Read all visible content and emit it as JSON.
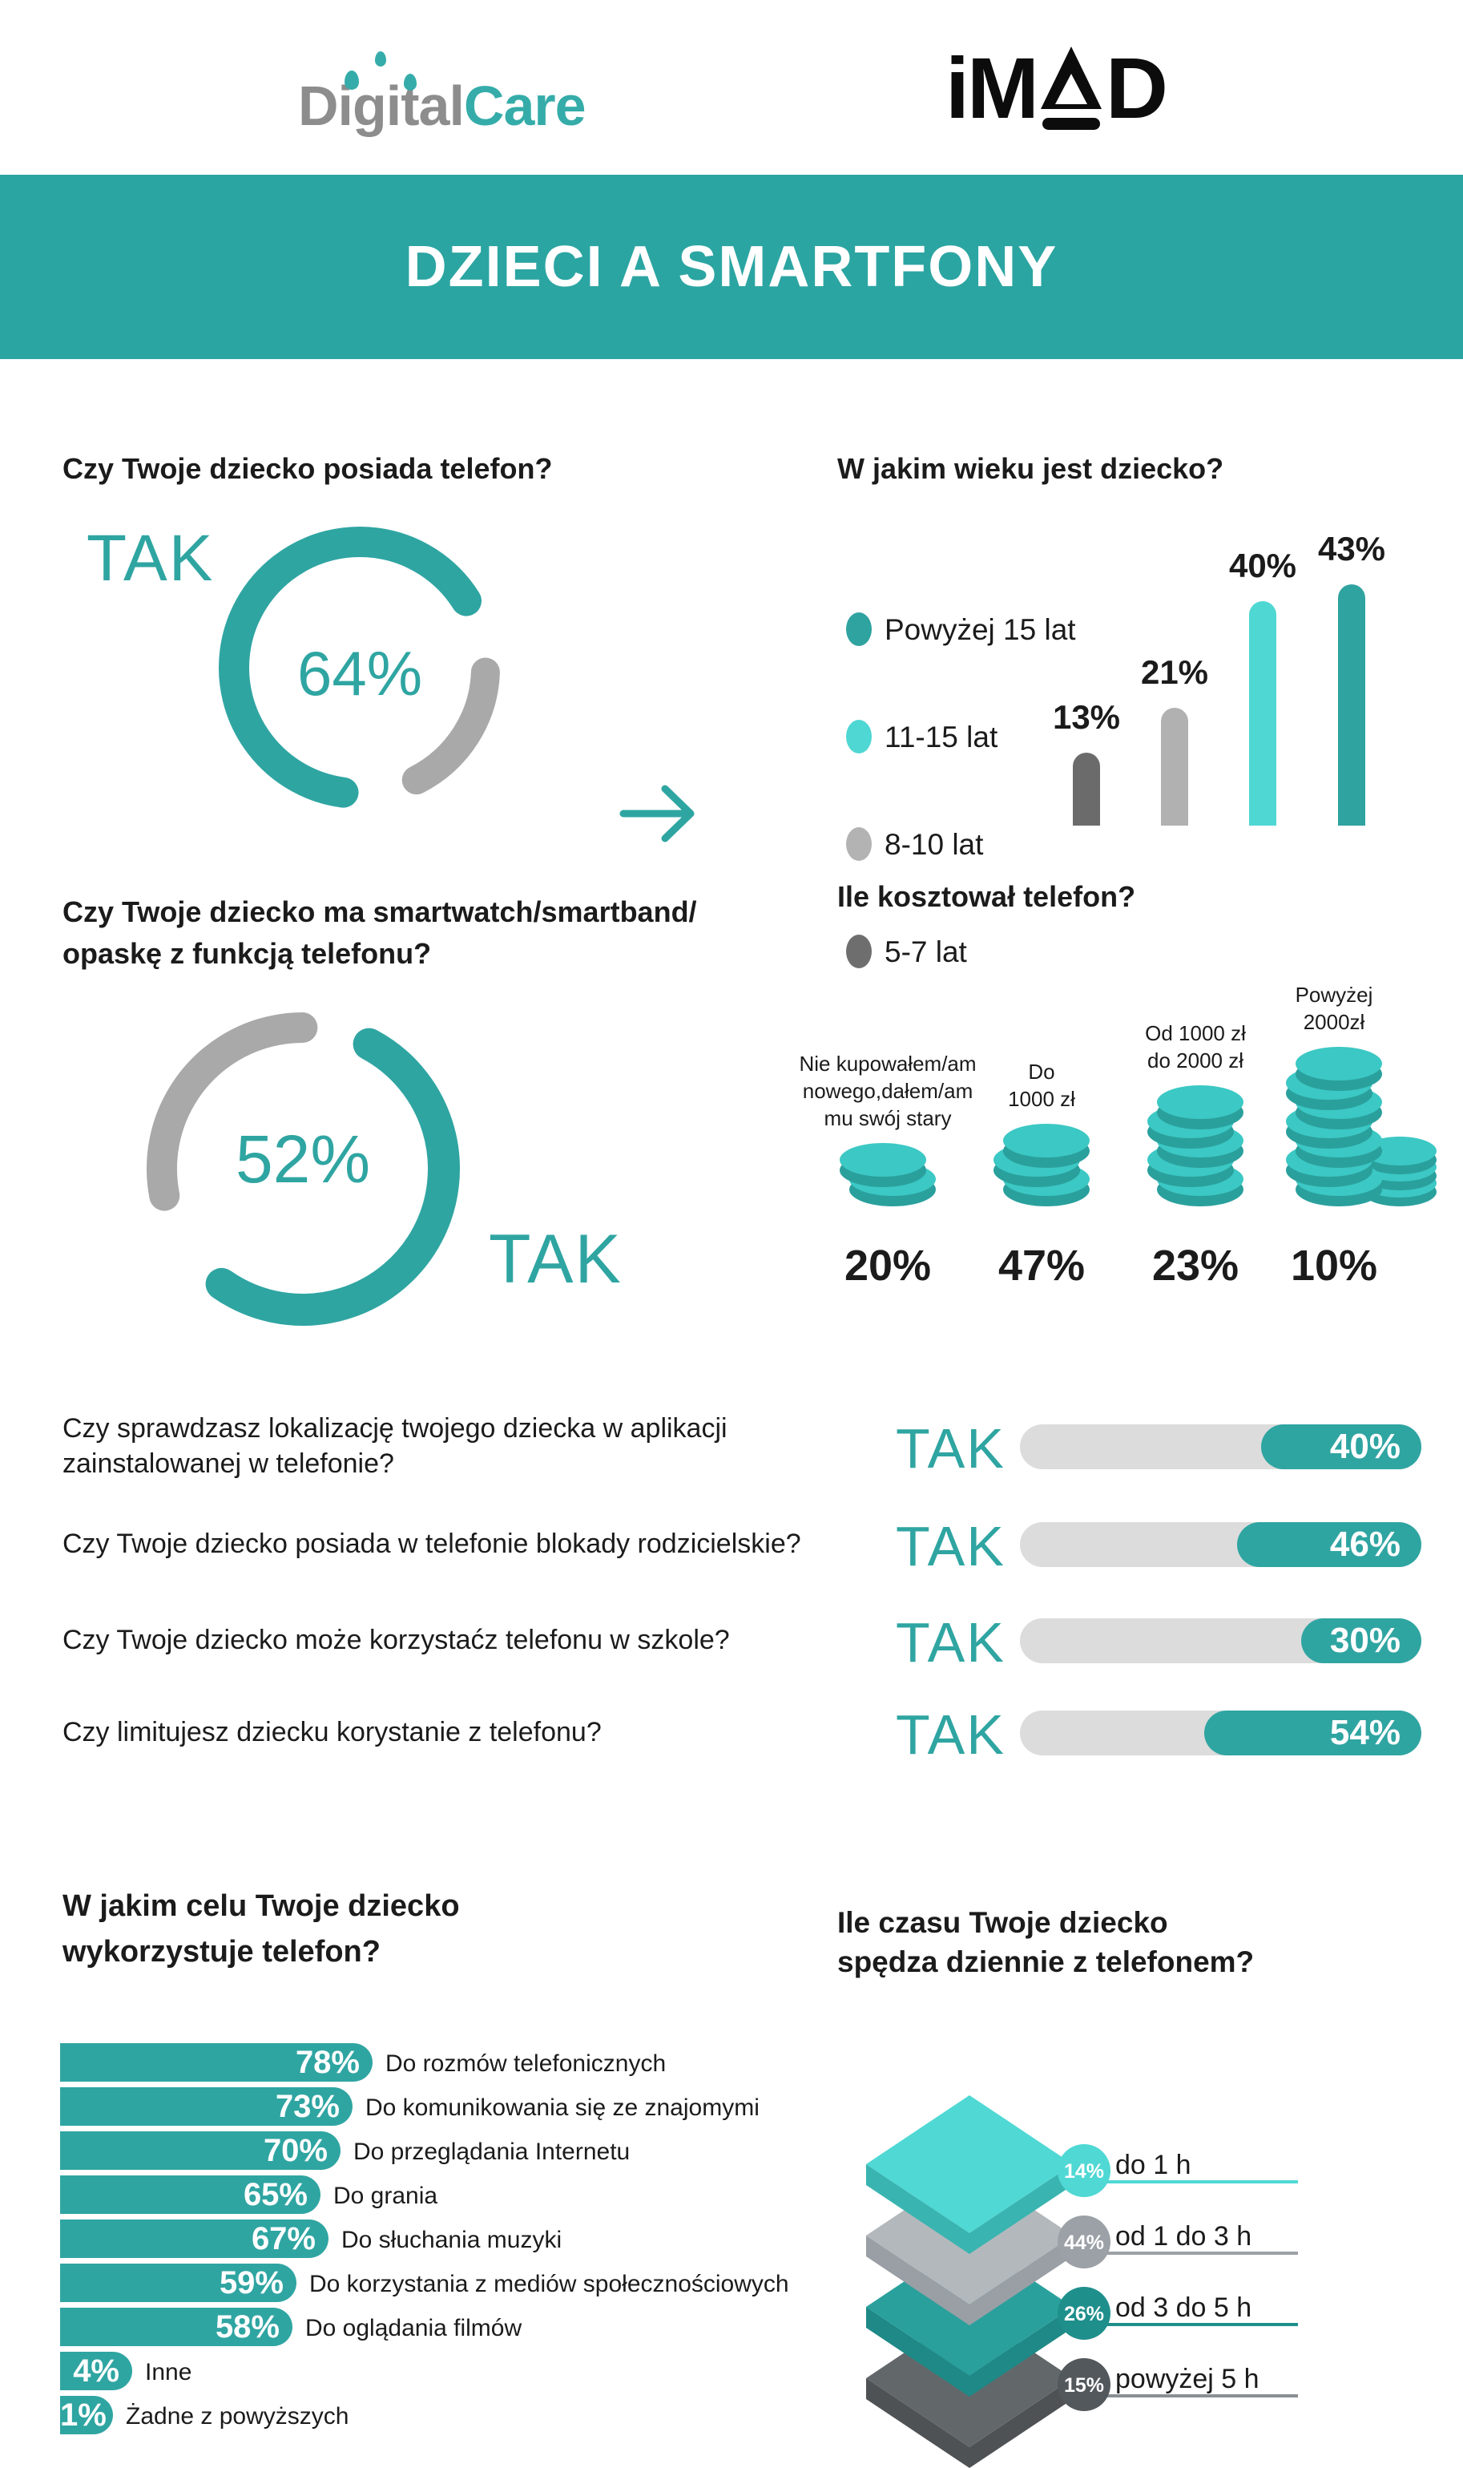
{
  "header": {
    "brand1": {
      "gray": "Digital",
      "teal": "Care"
    },
    "brand2": {
      "im": "iM",
      "d": "D"
    },
    "title": "DZIECI A SMARTFONY"
  },
  "colors": {
    "teal": "#2fa5a2",
    "cyan": "#4fd7d3",
    "light_gray": "#b1b1b1",
    "dark_gray": "#6b6b6b",
    "donut_rest_gray": "#a9a9a9",
    "track_gray": "#dcdcdc",
    "band": "#2ba5a2",
    "text": "#1b1b1b",
    "logo_gray": "#8d8d8d"
  },
  "chart_data": [
    {
      "id": "phone_donut",
      "type": "donut",
      "title": "Czy Twoje dziecko posiada telefon?",
      "answer_label": "TAK",
      "value": 64,
      "value_label": "64%",
      "color": "#2fa5a2",
      "rest_color": "#a9a9a9"
    },
    {
      "id": "age_bars",
      "type": "bar",
      "title": "W jakim wieku jest dziecko?",
      "legend": [
        {
          "label": "Powyżej 15 lat",
          "color": "#2fa3a0"
        },
        {
          "label": "11-15 lat",
          "color": "#4fd7d3"
        },
        {
          "label": "8-10 lat",
          "color": "#b3b3b3"
        },
        {
          "label": "5-7 lat",
          "color": "#6e6e6e"
        }
      ],
      "categories": [
        "5-7 lat",
        "8-10 lat",
        "11-15 lat",
        "Powyżej 15 lat"
      ],
      "values": [
        13,
        21,
        40,
        43
      ],
      "value_labels": [
        "13%",
        "21%",
        "40%",
        "43%"
      ],
      "colors": [
        "#6b6b6b",
        "#b1b1b1",
        "#4fd7d3",
        "#2fa3a0"
      ],
      "ylim": [
        0,
        100
      ],
      "grid": false,
      "legend_position": "left"
    },
    {
      "id": "smartwatch_donut",
      "type": "donut",
      "title_lines": [
        "Czy Twoje dziecko ma smartwatch/smartband/",
        "opaskę z funkcją telefonu?"
      ],
      "answer_label": "TAK",
      "value": 52,
      "value_label": "52%",
      "color": "#2fa5a2",
      "rest_color": "#a9a9a9"
    },
    {
      "id": "cost_coins",
      "type": "pictogram-bar",
      "title": "Ile kosztował telefon?",
      "items": [
        {
          "label_lines": [
            "Nie kupowałem/am",
            "nowego,dałem/am",
            "mu swój stary"
          ],
          "value": 20,
          "value_label": "20%",
          "coins": 2
        },
        {
          "label_lines": [
            "Do",
            "1000 zł"
          ],
          "value": 47,
          "value_label": "47%",
          "coins": 3
        },
        {
          "label_lines": [
            "Od 1000 zł",
            "do 2000 zł"
          ],
          "value": 23,
          "value_label": "23%",
          "coins": 5
        },
        {
          "label_lines": [
            "Powyżej",
            "2000zł"
          ],
          "value": 10,
          "value_label": "10%",
          "coins": 7,
          "side_coins": 3
        }
      ],
      "coin_color": "#3cc8c4",
      "coin_side_color": "#2aa09d"
    },
    {
      "id": "yes_bars",
      "type": "progress-bars",
      "rows": [
        {
          "question_lines": [
            "Czy sprawdzasz lokalizację twojego dziecka w aplikacji",
            "zainstalowanej w telefonie?"
          ],
          "answer_label": "TAK",
          "value": 40,
          "value_label": "40%"
        },
        {
          "question_lines": [
            "Czy Twoje dziecko posiada w telefonie blokady rodzicielskie?"
          ],
          "answer_label": "TAK",
          "value": 46,
          "value_label": "46%"
        },
        {
          "question_lines": [
            "Czy Twoje dziecko może korzystaćz telefonu w szkole?"
          ],
          "answer_label": "TAK",
          "value": 30,
          "value_label": "30%"
        },
        {
          "question_lines": [
            "Czy limitujesz dziecku korystanie z telefonu?"
          ],
          "answer_label": "TAK",
          "value": 54,
          "value_label": "54%"
        }
      ],
      "track_color": "#dcdcdc",
      "fill_color": "#2fa5a2"
    },
    {
      "id": "purpose_bars",
      "type": "bar-horizontal",
      "title_lines": [
        "W jakim celu Twoje dziecko",
        "wykorzystuje telefon?"
      ],
      "bars": [
        {
          "value": 78,
          "value_label": "78%",
          "label": "Do rozmów telefonicznych"
        },
        {
          "value": 73,
          "value_label": "73%",
          "label": "Do komunikowania się ze znajomymi"
        },
        {
          "value": 70,
          "value_label": "70%",
          "label": "Do przeglądania Internetu"
        },
        {
          "value": 65,
          "value_label": "65%",
          "label": "Do grania"
        },
        {
          "value": 67,
          "value_label": "67%",
          "label": "Do słuchania muzyki"
        },
        {
          "value": 59,
          "value_label": "59%",
          "label": "Do korzystania z mediów społecznościowych"
        },
        {
          "value": 58,
          "value_label": "58%",
          "label": "Do oglądania filmów"
        },
        {
          "value": 4,
          "value_label": "4%",
          "label": "Inne"
        },
        {
          "value": 1,
          "value_label": "1%",
          "label": "Żadne z powyższych"
        }
      ],
      "bar_color": "#2fa5a2",
      "xlim": [
        0,
        100
      ]
    },
    {
      "id": "time_layers",
      "type": "layer-diagram",
      "title_lines": [
        "Ile czasu Twoje dziecko",
        "spędza dziennie z telefonem?"
      ],
      "layers": [
        {
          "value": 14,
          "value_label": "14%",
          "label": "do 1 h",
          "top_color": "#4fd8d4",
          "side_color": "#3ab4b0",
          "circle_color": "#4fd8d4",
          "line_color": "#4fd8d4"
        },
        {
          "value": 44,
          "value_label": "44%",
          "label": "od 1 do 3 h",
          "top_color": "#b3b8bc",
          "side_color": "#999fa4",
          "circle_color": "#9ba1a6",
          "line_color": "#9ba1a6"
        },
        {
          "value": 26,
          "value_label": "26%",
          "label": "od 3 do 5 h",
          "top_color": "#2aa09d",
          "side_color": "#1e8986",
          "circle_color": "#1f8f8c",
          "line_color": "#1f8f8c"
        },
        {
          "value": 15,
          "value_label": "15%",
          "label": "powyżej 5 h",
          "top_color": "#62676a",
          "side_color": "#4e5254",
          "circle_color": "#53585c",
          "line_color": "#8a8f93"
        }
      ]
    }
  ]
}
